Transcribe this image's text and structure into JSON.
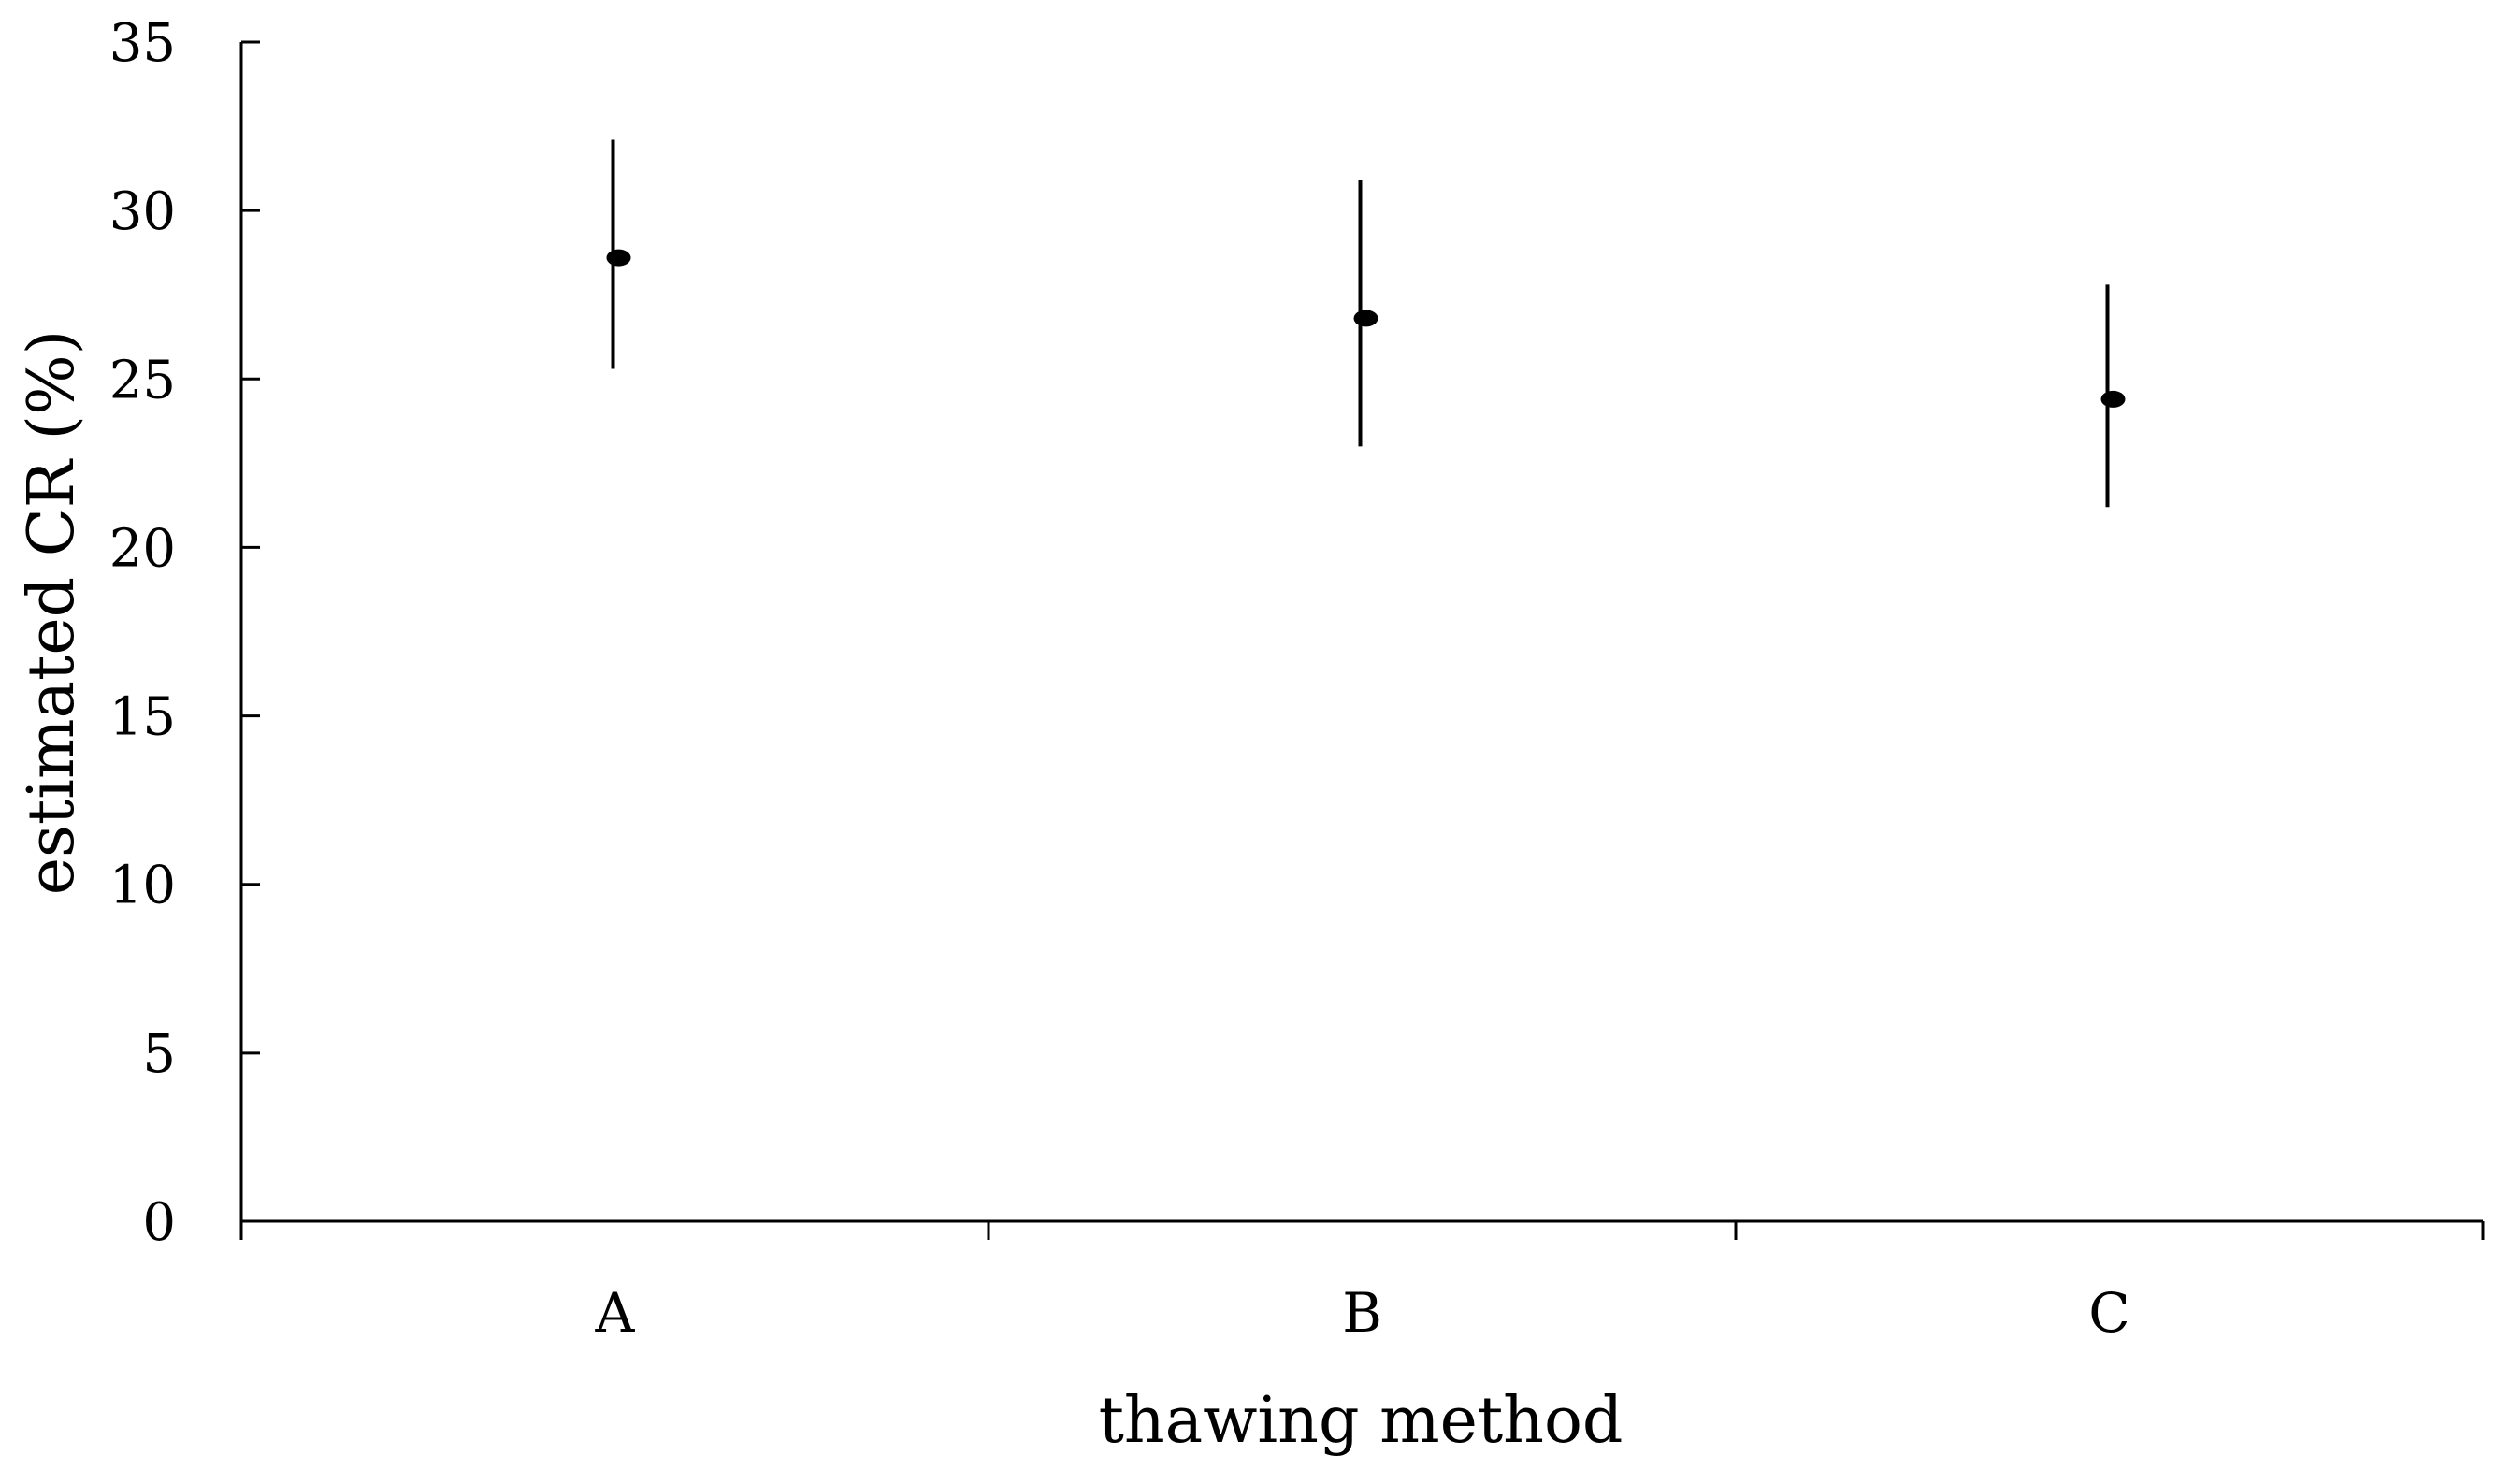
{
  "chart_data": {
    "type": "scatter",
    "title": "",
    "xlabel": "thawing method",
    "ylabel": "estimated CR (%)",
    "categories": [
      "A",
      "B",
      "C"
    ],
    "values": [
      28.6,
      26.8,
      24.4
    ],
    "error_low": [
      25.3,
      23.0,
      21.2
    ],
    "error_high": [
      32.1,
      30.9,
      27.8
    ],
    "ylim": [
      0,
      35
    ],
    "yticks": [
      0,
      5,
      10,
      15,
      20,
      25,
      30,
      35
    ],
    "ytick_labels": [
      "0",
      "5",
      "10",
      "15",
      "20",
      "25",
      "30",
      "35"
    ],
    "grid": false,
    "legend": "none",
    "marker_color": "#000000",
    "axis_color": "#000000"
  }
}
